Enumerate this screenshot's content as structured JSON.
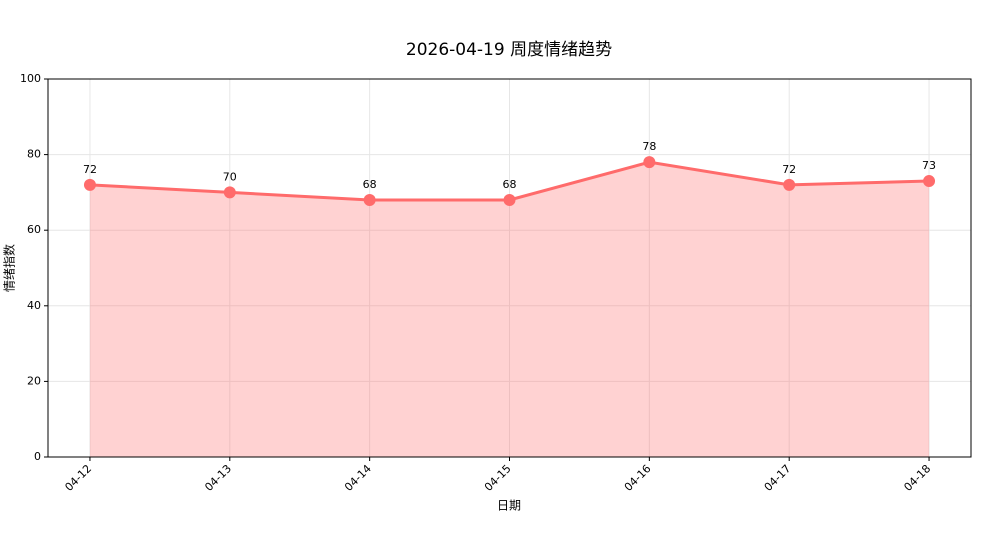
{
  "chart_data": {
    "type": "line",
    "title": "2026-04-19 周度情绪趋势",
    "x_label": "日期",
    "y_label": "情绪指数",
    "categories": [
      "04-12",
      "04-13",
      "04-14",
      "04-15",
      "04-16",
      "04-17",
      "04-18"
    ],
    "series": [
      {
        "name": "情绪指数",
        "color": "#ff6b6b",
        "values": [
          72,
          70,
          68,
          68,
          78,
          72,
          73
        ]
      }
    ],
    "ylim": [
      0,
      100
    ],
    "yticks": [
      0,
      20,
      40,
      60,
      80,
      100
    ],
    "grid": true,
    "area_fill": true
  }
}
